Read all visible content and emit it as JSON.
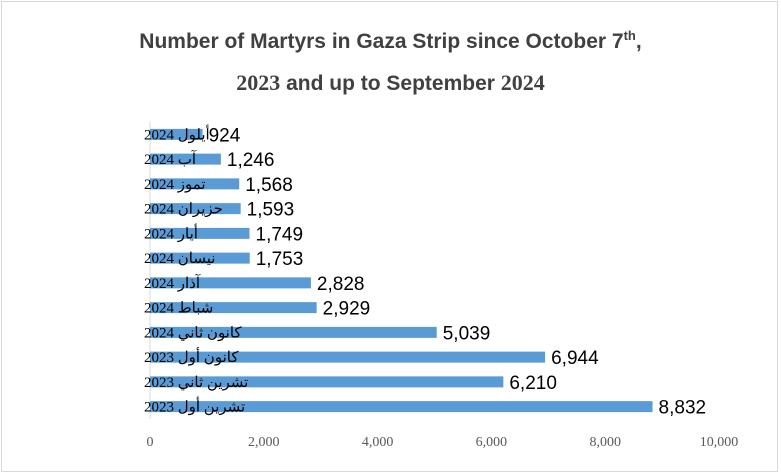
{
  "chart_data": {
    "type": "bar",
    "orientation": "horizontal",
    "title": {
      "line1": "Number of Martyrs in Gaza Strip since October 7",
      "line1_sup": "th",
      "line1_end": ",",
      "line2_year1": "2023",
      "line2_mid": " and up to September ",
      "line2_year2": "2024"
    },
    "categories": [
      "أيلول 2024",
      "آب 2024",
      "تموز 2024",
      "حزيران 2024",
      "أيار 2024",
      "نيسان 2024",
      "آذار 2024",
      "شباط 2024",
      "كانون ثاني 2024",
      "كانون أول 2023",
      "تشرين ثاني 2023",
      "تشرين أول 2023"
    ],
    "values": [
      924,
      1246,
      1568,
      1593,
      1749,
      1753,
      2828,
      2929,
      5039,
      6944,
      6210,
      8832
    ],
    "value_labels": [
      "924",
      "1,246",
      "1,568",
      "1,593",
      "1,749",
      "1,753",
      "2,828",
      "2,929",
      "5,039",
      "6,944",
      "6,210",
      "8,832"
    ],
    "xlim": [
      0,
      10000
    ],
    "xticks": [
      0,
      2000,
      4000,
      6000,
      8000,
      10000
    ],
    "xtick_labels": [
      "0",
      "2,000",
      "4,000",
      "6,000",
      "8,000",
      "10,000"
    ],
    "bar_color": "#5b9bd5",
    "grid": false,
    "legend": "none"
  }
}
